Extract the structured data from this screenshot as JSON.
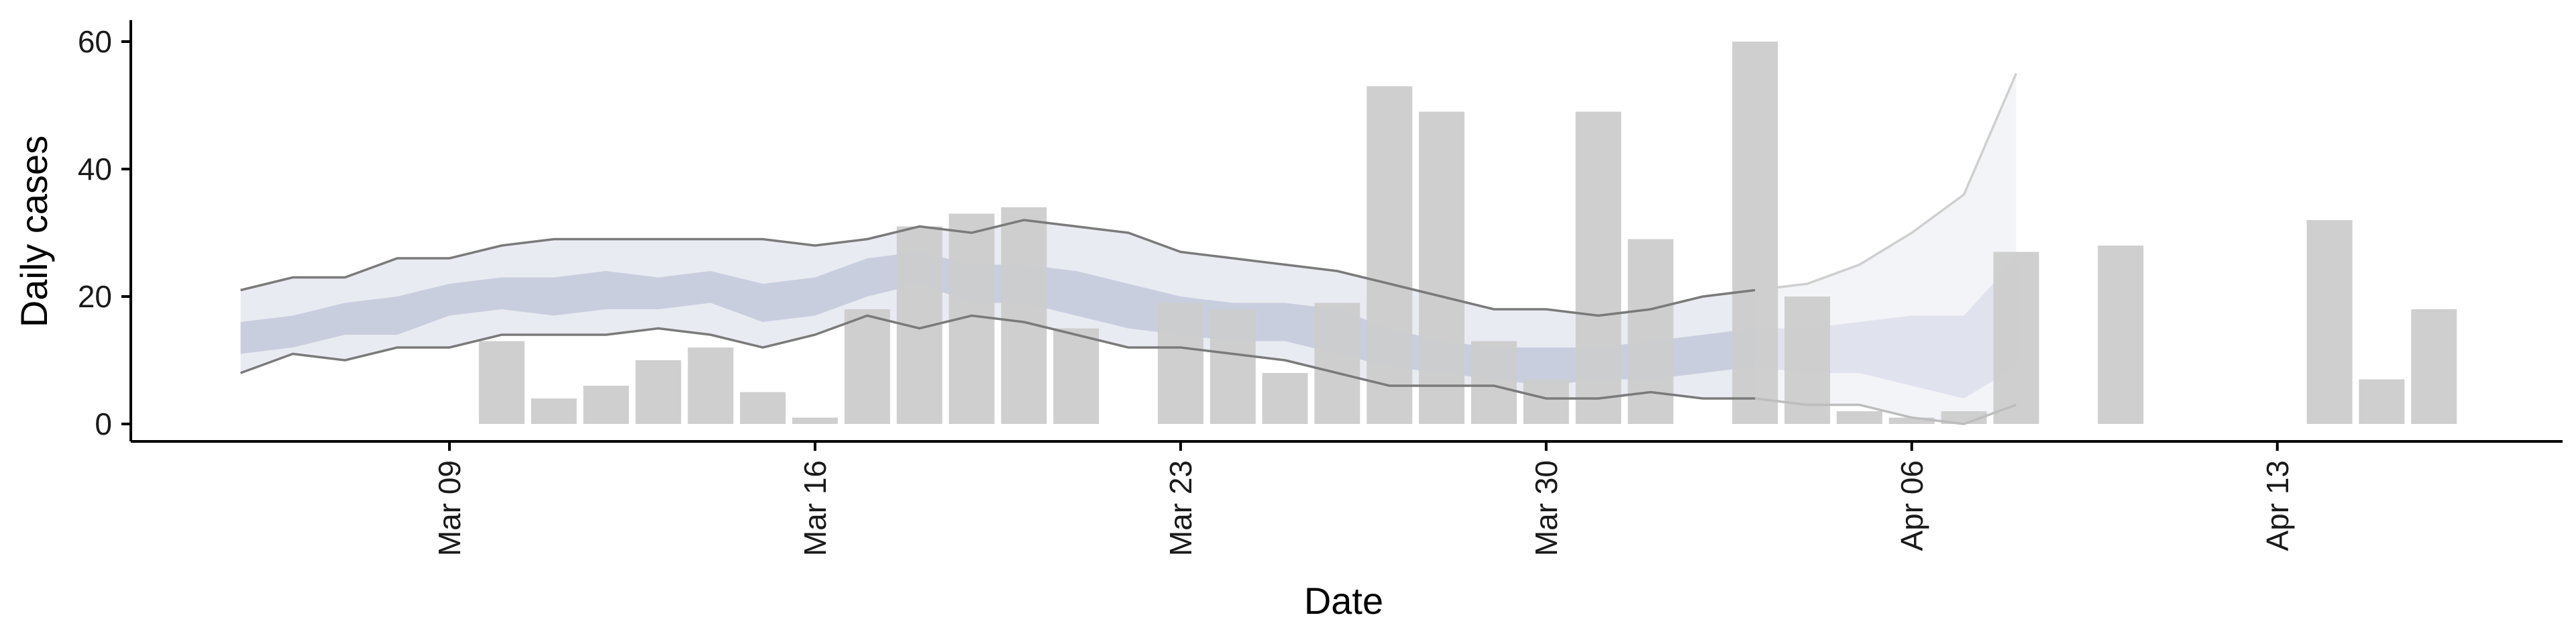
{
  "chart_data": {
    "type": "bar",
    "xlabel": "Date",
    "ylabel": "Daily cases",
    "title": "",
    "x_type": "date",
    "year": 2020,
    "xlim": [
      "2020-03-02",
      "2020-04-19"
    ],
    "ylim": [
      0,
      63
    ],
    "y_ticks": [
      0,
      20,
      40,
      60
    ],
    "x_ticks": [
      {
        "date": "2020-03-09",
        "label": "Mar 09"
      },
      {
        "date": "2020-03-16",
        "label": "Mar 16"
      },
      {
        "date": "2020-03-23",
        "label": "Mar 23"
      },
      {
        "date": "2020-03-30",
        "label": "Mar 30"
      },
      {
        "date": "2020-04-06",
        "label": "Apr 06"
      },
      {
        "date": "2020-04-13",
        "label": "Apr 13"
      }
    ],
    "grid": false,
    "legend": "none",
    "bars": {
      "name": "",
      "color": "#cccccc",
      "dates": [
        "2020-03-10",
        "2020-03-11",
        "2020-03-12",
        "2020-03-13",
        "2020-03-14",
        "2020-03-15",
        "2020-03-16",
        "2020-03-17",
        "2020-03-18",
        "2020-03-19",
        "2020-03-20",
        "2020-03-21",
        "2020-03-23",
        "2020-03-24",
        "2020-03-25",
        "2020-03-26",
        "2020-03-27",
        "2020-03-28",
        "2020-03-29",
        "2020-03-30",
        "2020-03-31",
        "2020-04-01",
        "2020-04-03",
        "2020-04-04",
        "2020-04-05",
        "2020-04-06",
        "2020-04-07",
        "2020-04-08",
        "2020-04-10",
        "2020-04-14",
        "2020-04-15",
        "2020-04-16"
      ],
      "values": [
        13,
        4,
        6,
        10,
        12,
        5,
        1,
        18,
        31,
        33,
        34,
        15,
        19,
        18,
        8,
        19,
        53,
        49,
        13,
        7,
        49,
        29,
        60,
        20,
        2,
        1,
        2,
        27,
        28,
        32,
        7,
        18
      ]
    },
    "estimate_bands": {
      "dates": [
        "2020-03-06",
        "2020-03-07",
        "2020-03-08",
        "2020-03-09",
        "2020-03-10",
        "2020-03-11",
        "2020-03-12",
        "2020-03-13",
        "2020-03-14",
        "2020-03-15",
        "2020-03-16",
        "2020-03-17",
        "2020-03-18",
        "2020-03-19",
        "2020-03-20",
        "2020-03-21",
        "2020-03-22",
        "2020-03-23",
        "2020-03-24",
        "2020-03-25",
        "2020-03-26",
        "2020-03-27",
        "2020-03-28",
        "2020-03-29",
        "2020-03-30",
        "2020-03-31",
        "2020-04-01",
        "2020-04-02",
        "2020-04-03",
        "2020-04-04",
        "2020-04-05",
        "2020-04-06",
        "2020-04-07"
      ],
      "outer_upper": [
        21,
        23,
        23,
        26,
        26,
        28,
        29,
        29,
        29,
        29,
        29,
        28,
        29,
        31,
        30,
        32,
        31,
        30,
        27,
        26,
        25,
        24,
        22,
        20,
        18,
        18,
        17,
        18,
        20,
        21,
        22,
        25,
        30,
        36,
        55
      ],
      "outer_lower": [
        8,
        11,
        10,
        12,
        12,
        14,
        14,
        14,
        15,
        14,
        12,
        14,
        17,
        15,
        17,
        16,
        14,
        12,
        12,
        11,
        10,
        8,
        6,
        6,
        6,
        4,
        4,
        5,
        4,
        4,
        3,
        3,
        1,
        0,
        3
      ],
      "inner_upper": [
        16,
        17,
        19,
        20,
        22,
        23,
        23,
        24,
        23,
        24,
        22,
        23,
        26,
        27,
        25,
        25,
        24,
        22,
        20,
        19,
        19,
        18,
        15,
        13,
        12,
        12,
        12,
        13,
        14,
        15,
        15,
        16,
        17,
        17,
        26
      ],
      "inner_lower": [
        11,
        12,
        14,
        14,
        17,
        18,
        17,
        18,
        18,
        19,
        16,
        17,
        20,
        22,
        19,
        19,
        17,
        15,
        14,
        13,
        13,
        11,
        9,
        8,
        7,
        6,
        7,
        7,
        8,
        9,
        8,
        8,
        6,
        4,
        9
      ],
      "dates_full": [
        "2020-03-05",
        "2020-03-06",
        "2020-03-07",
        "2020-03-08",
        "2020-03-09",
        "2020-03-10",
        "2020-03-11",
        "2020-03-12",
        "2020-03-13",
        "2020-03-14",
        "2020-03-15",
        "2020-03-16",
        "2020-03-17",
        "2020-03-18",
        "2020-03-19",
        "2020-03-20",
        "2020-03-21",
        "2020-03-22",
        "2020-03-23",
        "2020-03-24",
        "2020-03-25",
        "2020-03-26",
        "2020-03-27",
        "2020-03-28",
        "2020-03-29",
        "2020-03-30",
        "2020-03-31",
        "2020-04-01",
        "2020-04-02",
        "2020-04-03",
        "2020-04-04",
        "2020-04-05",
        "2020-04-06",
        "2020-04-07",
        "2020-04-08"
      ],
      "forecast_start": "2020-04-03",
      "outer_color": "#e9ebf2",
      "inner_color": "#c3c9dc",
      "line_color": "#7a7a7a"
    }
  }
}
